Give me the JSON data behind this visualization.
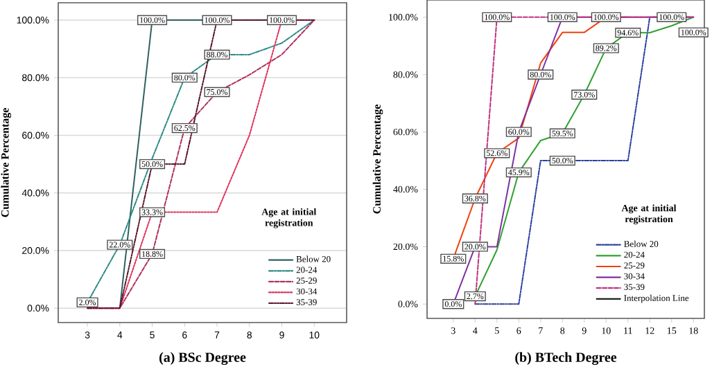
{
  "chart_data": [
    {
      "type": "line",
      "title": "(a) BSc Degree",
      "ylabel": "Cumulative Percentage",
      "legend_title": "Age at initial registration",
      "categories": [
        "3",
        "4",
        "5",
        "6",
        "7",
        "8",
        "9",
        "10"
      ],
      "series": [
        {
          "name": "Below 20",
          "color": "#2f6060",
          "line_style": "solid",
          "values": [
            null,
            0,
            100,
            100,
            100,
            100,
            100,
            100
          ]
        },
        {
          "name": "20-24",
          "color": "#2a8a86",
          "line_style": "dashdot",
          "values": [
            2,
            22,
            52,
            80,
            88,
            88,
            92,
            100
          ]
        },
        {
          "name": "25-29",
          "color": "#b0305e",
          "line_style": "dashed",
          "values": [
            0,
            0,
            18.8,
            62.5,
            75,
            81,
            88,
            100
          ]
        },
        {
          "name": "30-34",
          "color": "#e0305a",
          "line_style": "dotted",
          "values": [
            0,
            0,
            33.3,
            33.3,
            33.3,
            60,
            100,
            100
          ]
        },
        {
          "name": "35-39",
          "color": "#5a1228",
          "line_style": "dashdotdot",
          "values": [
            0,
            0,
            50,
            50,
            100,
            100,
            100,
            100
          ]
        }
      ],
      "ylim": [
        -5,
        106
      ],
      "yticks": [
        {
          "value": 0,
          "label": "0.0%"
        },
        {
          "value": 20,
          "label": "20.0%"
        },
        {
          "value": 40,
          "label": "40.0%"
        },
        {
          "value": 60,
          "label": "60.0%"
        },
        {
          "value": 80,
          "label": "80.0%"
        },
        {
          "value": 100,
          "label": "100.0%"
        }
      ],
      "grid": "y",
      "legend": "bottom right",
      "annotations": [
        {
          "text": "100.0%",
          "x": "5",
          "y": 100
        },
        {
          "text": "100.0%",
          "x": "7",
          "y": 100
        },
        {
          "text": "100.0%",
          "x": "9",
          "y": 100
        },
        {
          "text": "88.0%",
          "x": "7",
          "y": 88
        },
        {
          "text": "80.0%",
          "x": "6",
          "y": 80
        },
        {
          "text": "75.0%",
          "x": "7",
          "y": 75
        },
        {
          "text": "62.5%",
          "x": "6",
          "y": 62.5
        },
        {
          "text": "50.0%",
          "x": "5",
          "y": 50
        },
        {
          "text": "33.3%",
          "x": "5",
          "y": 33.3
        },
        {
          "text": "18.8%",
          "x": "5",
          "y": 18.8
        },
        {
          "text": "22.0%",
          "x": "4",
          "y": 22
        },
        {
          "text": "2.0%",
          "x": "3",
          "y": 2
        }
      ]
    },
    {
      "type": "line",
      "title": "(b) BTech Degree",
      "ylabel": "Cumulative Percentage",
      "legend_title": "Age at initial registration",
      "categories": [
        "3",
        "4",
        "5",
        "6",
        "7",
        "8",
        "9",
        "10",
        "11",
        "12",
        "15",
        "18"
      ],
      "series": [
        {
          "name": "Below 20",
          "color": "#2a3fa0",
          "line_style": "dashdot",
          "values": [
            null,
            0,
            0,
            0,
            50,
            50,
            50,
            50,
            50,
            100,
            100,
            100
          ]
        },
        {
          "name": "20-24",
          "color": "#30a030",
          "line_style": "solid",
          "values": [
            null,
            2.7,
            18.9,
            45.9,
            57,
            59.5,
            73,
            89.2,
            94.6,
            94.6,
            97,
            100
          ]
        },
        {
          "name": "25-29",
          "color": "#f04010",
          "line_style": "solid",
          "values": [
            15.8,
            36.8,
            52.6,
            57.9,
            84,
            94.7,
            94.7,
            100,
            100,
            null,
            null,
            null
          ]
        },
        {
          "name": "30-34",
          "color": "#8030a0",
          "line_style": "solid",
          "values": [
            0,
            20,
            20,
            60,
            80,
            100,
            100,
            100,
            100,
            100,
            100,
            100
          ]
        },
        {
          "name": "35-39",
          "color": "#c03080",
          "line_style": "dashed",
          "values": [
            null,
            0,
            100,
            100,
            100,
            100,
            100,
            100,
            100,
            100,
            100,
            100
          ]
        },
        {
          "name": "Interpolation Line",
          "color": "#202020",
          "line_style": "solid",
          "values": [
            null,
            null,
            null,
            null,
            null,
            null,
            null,
            null,
            null,
            null,
            null,
            null
          ]
        }
      ],
      "ylim": [
        -5,
        106
      ],
      "yticks": [
        {
          "value": 0,
          "label": "0.0%"
        },
        {
          "value": 20,
          "label": "20.0%"
        },
        {
          "value": 40,
          "label": "40.0%"
        },
        {
          "value": 60,
          "label": "60.0%"
        },
        {
          "value": 80,
          "label": "80.0%"
        },
        {
          "value": 100,
          "label": "100.0%"
        }
      ],
      "grid": false,
      "legend": "bottom right",
      "annotations": [
        {
          "text": "0.0%",
          "x": "3",
          "y": 0
        },
        {
          "text": "2.7%",
          "x": "4",
          "y": 2.7
        },
        {
          "text": "15.8%",
          "x": "3",
          "y": 15.8
        },
        {
          "text": "20.0%",
          "x": "4",
          "y": 20
        },
        {
          "text": "36.8%",
          "x": "4",
          "y": 36.8
        },
        {
          "text": "52.6%",
          "x": "5",
          "y": 52.6
        },
        {
          "text": "45.9%",
          "x": "6",
          "y": 45.9
        },
        {
          "text": "60.0%",
          "x": "6",
          "y": 60
        },
        {
          "text": "80.0%",
          "x": "7",
          "y": 80
        },
        {
          "text": "59.5%",
          "x": "8",
          "y": 59.5
        },
        {
          "text": "50.0%",
          "x": "8",
          "y": 50
        },
        {
          "text": "73.0%",
          "x": "9",
          "y": 73
        },
        {
          "text": "89.2%",
          "x": "10",
          "y": 89.2
        },
        {
          "text": "94.6%",
          "x": "11",
          "y": 94.6
        },
        {
          "text": "100.0%",
          "x": "5",
          "y": 100
        },
        {
          "text": "100.0%",
          "x": "8",
          "y": 100
        },
        {
          "text": "100.0%",
          "x": "10",
          "y": 100
        },
        {
          "text": "100.0%",
          "x": "15",
          "y": 100
        },
        {
          "text": "100.0%",
          "x": "18",
          "y": 100
        }
      ]
    }
  ]
}
